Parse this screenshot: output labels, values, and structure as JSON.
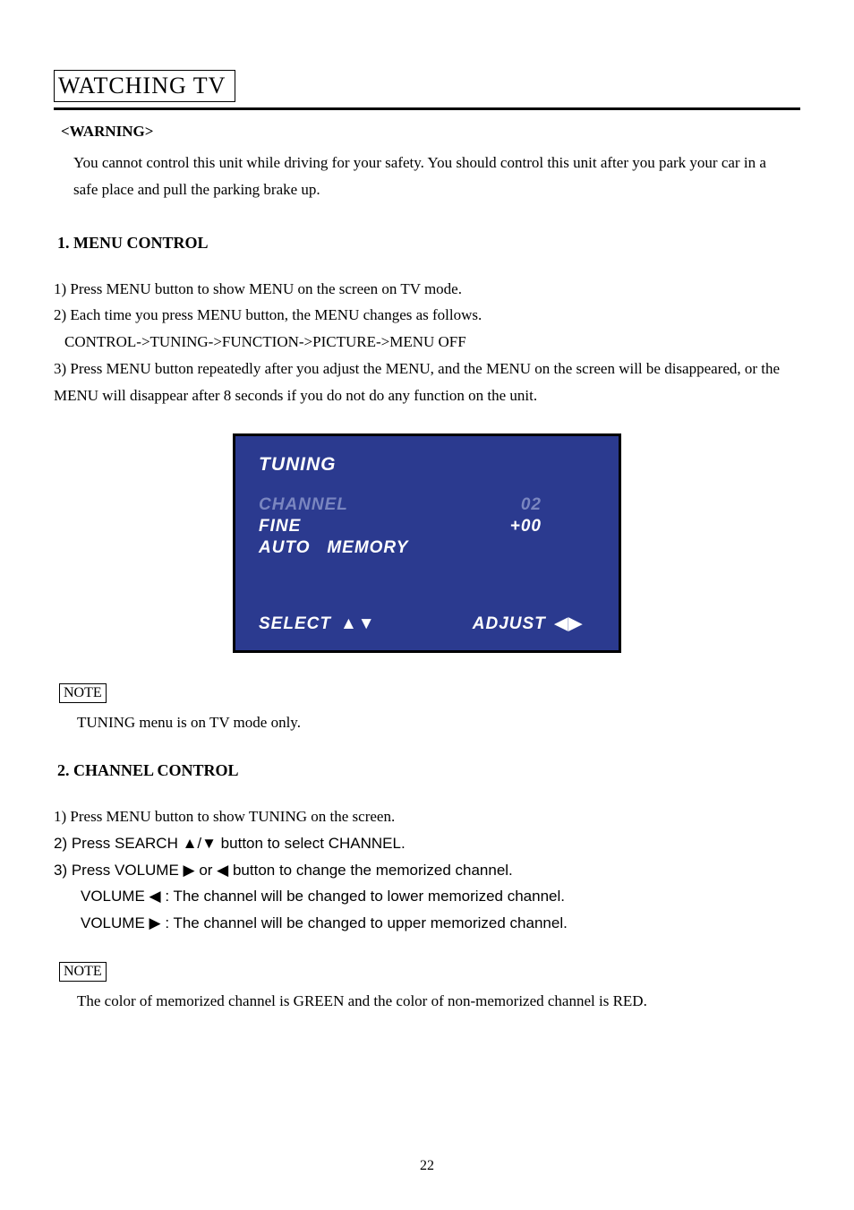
{
  "title": "WATCHING TV",
  "warning": {
    "label": "<WARNING>",
    "text": "You cannot control this unit while driving for your safety. You should control this unit after you park your car in a safe place and pull the parking brake up."
  },
  "section1": {
    "heading": "1. MENU CONTROL",
    "line1": "1) Press MENU button to show MENU on the screen on TV mode.",
    "line2": "2) Each time you press MENU button, the MENU changes as follows.",
    "line2sub": "CONTROL->TUNING->FUNCTION->PICTURE->MENU OFF",
    "line3": "3) Press MENU button repeatedly after you adjust the MENU, and the MENU on the screen will be disappeared, or the MENU will disappear after 8 seconds if you do not do any function on the unit."
  },
  "tvscreen": {
    "title": "TUNING",
    "channel_label": "CHANNEL",
    "channel_value": "02",
    "fine_label": "FINE",
    "fine_value": "+00",
    "auto_label": "AUTO",
    "memory_label": "MEMORY",
    "select_label": "SELECT",
    "adjust_label": "ADJUST",
    "select_icons": "▲▼",
    "adjust_icons": "◀▶",
    "background_color": "#2b3a8f",
    "dim_color": "#7a86c0",
    "bright_color": "#ffffff"
  },
  "note1": {
    "label": "NOTE",
    "text": "TUNING menu is on TV mode only."
  },
  "section2": {
    "heading": "2. CHANNEL CONTROL",
    "line1": "1) Press MENU button to show TUNING on the screen.",
    "line2": "2) Press SEARCH ▲/▼ button to select CHANNEL.",
    "line3": "3) Press VOLUME  ▶  or  ◀  button to change the memorized channel.",
    "line3a": "VOLUME  ◀  : The channel will be changed to lower memorized channel.",
    "line3b": "VOLUME  ▶  : The channel will be changed to upper memorized channel."
  },
  "note2": {
    "label": "NOTE",
    "text": "The color of memorized channel is GREEN and the color of non-memorized channel is RED."
  },
  "page_number": "22"
}
